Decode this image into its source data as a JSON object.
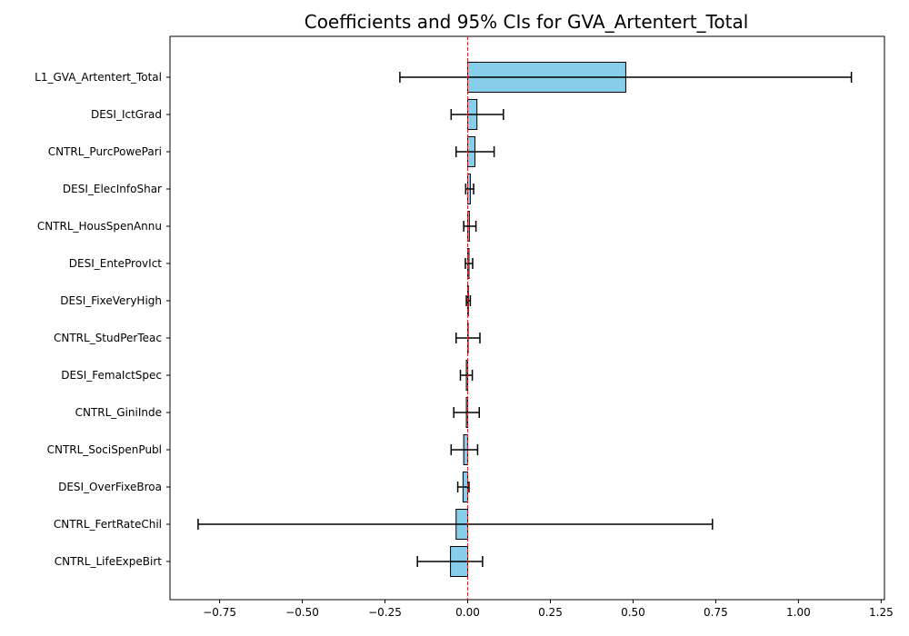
{
  "chart_data": {
    "type": "bar",
    "orientation": "horizontal",
    "title": "Coefficients and 95% CIs for GVA_Artentert_Total",
    "xlabel": "",
    "ylabel": "",
    "xlim": [
      -0.9,
      1.26
    ],
    "xticks": [
      -0.75,
      -0.5,
      -0.25,
      0.0,
      0.25,
      0.5,
      0.75,
      1.0,
      1.25
    ],
    "xtick_labels": [
      "−0.75",
      "−0.50",
      "−0.25",
      "0.00",
      "0.25",
      "0.50",
      "0.75",
      "1.00",
      "1.25"
    ],
    "grid": false,
    "reference_line": 0.0,
    "colors": {
      "bar_fill": "#87ceeb",
      "bar_edge": "#000000",
      "error_bar": "#000000",
      "reference_line": "#d62728"
    },
    "categories": [
      "L1_GVA_Artentert_Total",
      "DESI_IctGrad",
      "CNTRL_PurcPowePari",
      "DESI_ElecInfoShar",
      "CNTRL_HousSpenAnnu",
      "DESI_EnteProvIct",
      "DESI_FixeVeryHigh",
      "CNTRL_StudPerTeac",
      "DESI_FemaIctSpec",
      "CNTRL_GiniInde",
      "CNTRL_SociSpenPubl",
      "DESI_OverFixeBroa",
      "CNTRL_FertRateChil",
      "CNTRL_LifeExpeBirt"
    ],
    "values": [
      0.478,
      0.028,
      0.022,
      0.008,
      0.005,
      0.004,
      0.002,
      0.0,
      -0.004,
      -0.004,
      -0.012,
      -0.014,
      -0.035,
      -0.052
    ],
    "ci_low": [
      -0.205,
      -0.05,
      -0.035,
      -0.006,
      -0.012,
      -0.007,
      -0.004,
      -0.035,
      -0.022,
      -0.042,
      -0.05,
      -0.03,
      -0.815,
      -0.152
    ],
    "ci_high": [
      1.16,
      0.108,
      0.08,
      0.018,
      0.025,
      0.015,
      0.008,
      0.037,
      0.014,
      0.035,
      0.03,
      0.004,
      0.74,
      0.045
    ]
  }
}
